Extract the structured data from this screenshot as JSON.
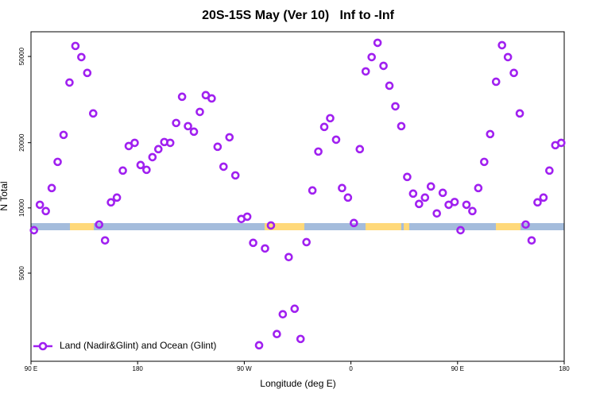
{
  "chart_data": {
    "type": "scatter",
    "title": "20S-15S May (Ver 10)   Inf to -Inf",
    "xlabel": "Longitude (deg E)",
    "ylabel": "N Total",
    "log_y": true,
    "legend": "lower left",
    "xlim": [
      90,
      540
    ],
    "ylim": [
      1960,
      65000
    ],
    "xticks": [
      {
        "value": 90,
        "label": "90 E"
      },
      180,
      {
        "value": 270,
        "label": "90 W"
      },
      {
        "value": 360,
        "label": "0"
      },
      {
        "value": 450,
        "label": "90 E"
      },
      {
        "value": 540,
        "label": "180"
      }
    ],
    "yticks": [
      5000,
      10000,
      20000,
      50000
    ],
    "x": [
      92.5,
      97.5,
      102.5,
      107.5,
      112.5,
      117.5,
      122.5,
      127.5,
      132.5,
      137.5,
      142.5,
      147.5,
      152.5,
      157.5,
      162.5,
      167.5,
      172.5,
      177.5,
      182.5,
      187.5,
      192.5,
      197.5,
      202.5,
      207.5,
      212.5,
      217.5,
      222.5,
      227.5,
      232.5,
      237.5,
      242.5,
      247.5,
      252.5,
      257.5,
      262.5,
      267.5,
      272.5,
      277.5,
      282.5,
      287.5,
      292.5,
      297.5,
      302.5,
      307.5,
      312.5,
      317.5,
      322.5,
      327.5,
      332.5,
      337.5,
      342.5,
      347.5,
      352.5,
      357.5,
      362.5,
      367.5,
      372.5,
      377.5,
      382.5,
      387.5,
      392.5,
      397.5,
      402.5,
      407.5,
      412.5,
      417.5,
      422.5,
      427.5,
      432.5,
      437.5,
      442.5,
      447.5,
      452.5,
      457.5,
      462.5,
      467.5,
      472.5,
      477.5,
      482.5,
      487.5,
      492.5,
      497.5,
      502.5,
      507.5,
      512.5,
      517.5,
      522.5,
      527.5,
      532.5,
      537.5
    ],
    "series": [
      {
        "name": "Land (Nadir&Glint) and Ocean (Glint)",
        "color": "#a020f0",
        "values": [
          7890,
          10340,
          9670,
          12350,
          16310,
          21730,
          37900,
          55900,
          49660,
          41970,
          27290,
          8380,
          7080,
          10610,
          11160,
          14870,
          19300,
          19960,
          15770,
          14990,
          17150,
          18670,
          20140,
          19960,
          24660,
          32580,
          23840,
          22480,
          27740,
          33140,
          32010,
          19150,
          15500,
          21180,
          14130,
          8890,
          9110,
          6900,
          2323,
          6500,
          8300,
          2617,
          3230,
          5930,
          3425,
          2485,
          6950,
          12040,
          18200,
          23650,
          25940,
          20650,
          12350,
          11160,
          8520,
          18670,
          42660,
          49660,
          57810,
          45250,
          36640,
          29430,
          23840,
          13900,
          11640,
          10430,
          11160,
          12560,
          9430,
          11740,
          10340,
          10650,
          7890,
          10340,
          9670,
          12350,
          16310,
          21910,
          38210,
          56360,
          49660,
          41970,
          27290,
          8380,
          7080,
          10610,
          11160,
          14870,
          19470,
          19960
        ]
      }
    ]
  }
}
